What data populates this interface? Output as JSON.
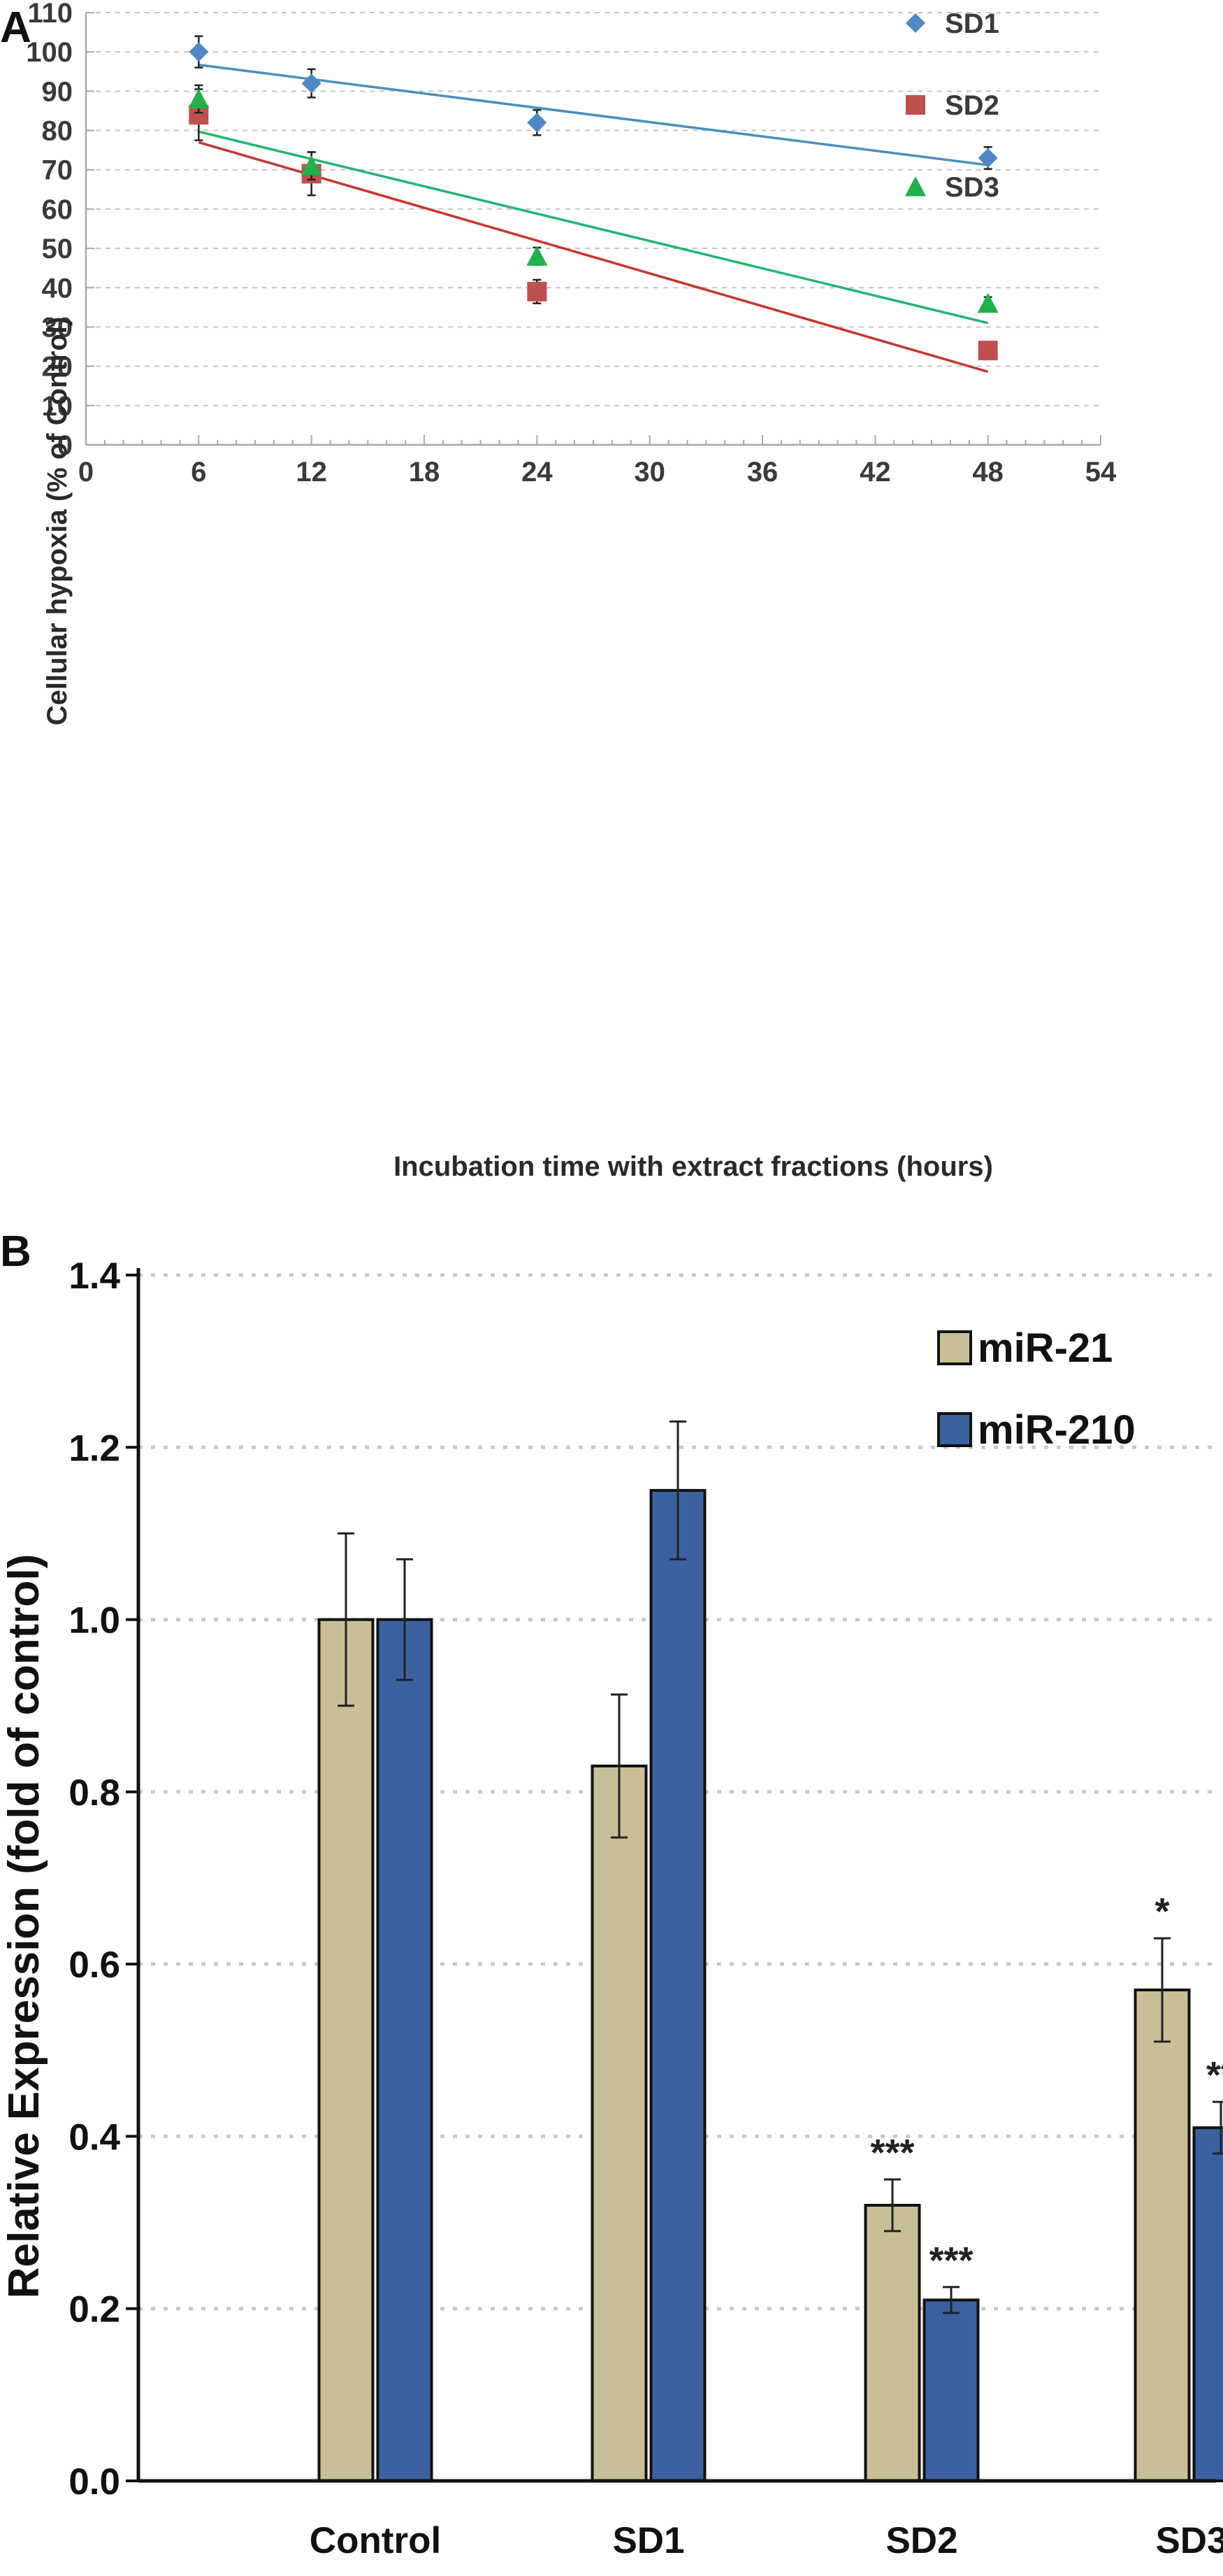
{
  "panels": {
    "a": {
      "letter": "A"
    },
    "b": {
      "letter": "B"
    }
  },
  "chart_data": [
    {
      "type": "scatter",
      "panel": "A",
      "xlabel": "Incubation time with extract fractions (hours)",
      "ylabel": "Cellular hypoxia (% of Control)",
      "xlim": [
        0,
        54
      ],
      "ylim": [
        0,
        110
      ],
      "xticks": [
        0,
        6,
        12,
        18,
        24,
        30,
        36,
        42,
        48,
        54
      ],
      "yticks": [
        0,
        10,
        20,
        30,
        40,
        50,
        60,
        70,
        80,
        90,
        100,
        110
      ],
      "grid": "horizontal dashed",
      "legend_position": "top-right",
      "series": [
        {
          "name": "SD1",
          "color": "#4f89c5",
          "marker": "diamond",
          "x": [
            6,
            12,
            24,
            48
          ],
          "y": [
            100,
            92,
            82,
            73
          ],
          "err": [
            4,
            3.6,
            3.2,
            2.8
          ],
          "trend": [
            [
              6,
              96.7
            ],
            [
              48,
              71.2
            ]
          ],
          "trend_color": "#4a90b9"
        },
        {
          "name": "SD2",
          "color": "#c0504d",
          "marker": "square",
          "x": [
            6,
            12,
            24,
            48
          ],
          "y": [
            84,
            69,
            39,
            24
          ],
          "err": [
            6.5,
            5.5,
            3,
            2
          ],
          "trend": [
            [
              6,
              77
            ],
            [
              48,
              18.6
            ]
          ],
          "trend_color": "#c8352f"
        },
        {
          "name": "SD3",
          "color": "#22b04b",
          "marker": "triangle",
          "x": [
            6,
            12,
            24,
            48
          ],
          "y": [
            88,
            71,
            48,
            36
          ],
          "err": [
            3.5,
            3.5,
            2.2,
            1.6
          ],
          "trend": [
            [
              6,
              79.7
            ],
            [
              48,
              31
            ]
          ],
          "trend_color": "#22b573"
        }
      ]
    },
    {
      "type": "bar",
      "panel": "B",
      "ylabel": "Relative Expression (fold of control)",
      "xlabel": "",
      "ylim": [
        0,
        1.4
      ],
      "yticks": [
        "0.0",
        "0.2",
        "0.4",
        "0.6",
        "0.8",
        "1.0",
        "1.2",
        "1.4"
      ],
      "grid": "horizontal dotted",
      "legend_position": "top-right",
      "categories": [
        "Control",
        "SD1",
        "SD2",
        "SD3"
      ],
      "series": [
        {
          "name": "miR-21",
          "color": "#c9bf97",
          "values": [
            1.0,
            0.83,
            0.32,
            0.57
          ],
          "errors": [
            0.1,
            0.083,
            0.03,
            0.06
          ],
          "significance": [
            "",
            "",
            "***",
            "*"
          ]
        },
        {
          "name": "miR-210",
          "color": "#3b62a0",
          "values": [
            1.0,
            1.15,
            0.21,
            0.41
          ],
          "errors": [
            0.07,
            0.08,
            0.015,
            0.03
          ],
          "significance": [
            "",
            "",
            "***",
            "**"
          ]
        }
      ]
    }
  ]
}
